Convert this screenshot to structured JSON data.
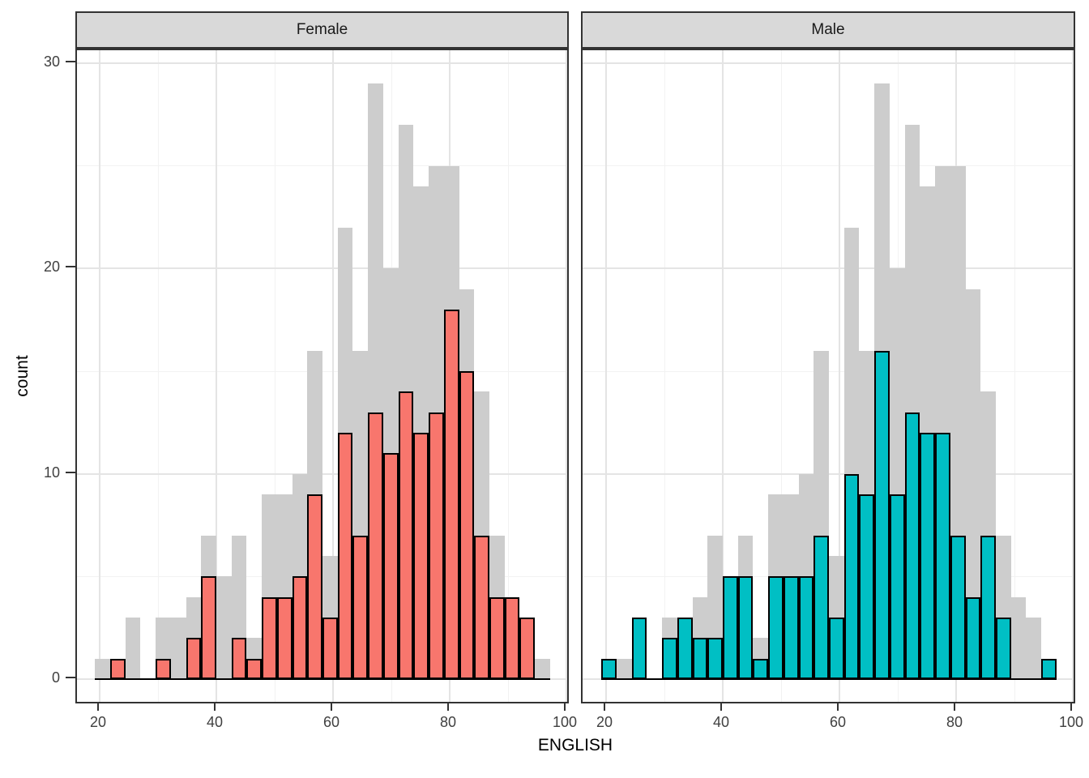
{
  "figure": {
    "x_axis_title": "ENGLISH",
    "y_axis_title": "count",
    "x_tick_labels": [
      "20",
      "40",
      "60",
      "80",
      "100"
    ],
    "y_tick_labels": [
      "0",
      "10",
      "20",
      "30"
    ]
  },
  "facets": [
    {
      "label": "Female",
      "color": "#F8766D"
    },
    {
      "label": "Male",
      "color": "#00BFC4"
    }
  ],
  "colors": {
    "background_bars": "#CDCDCD",
    "female_fill": "#F8766D",
    "male_fill": "#00BFC4",
    "bar_outline": "#000000",
    "strip_background": "#D9D9D9",
    "panel_border": "#333333",
    "grid_major": "#E4E4E4",
    "grid_minor": "#F2F2F2",
    "tick_text": "#404040"
  },
  "chart_data": {
    "type": "bar",
    "variant": "faceted histogram; gray background bars show the total (Female+Male) distribution repeated in each facet, colored bars show the facet subset",
    "title": "",
    "xlabel": "ENGLISH",
    "ylabel": "count",
    "facet_labels": [
      "Female",
      "Male"
    ],
    "bin_start": 19.2,
    "bin_width": 2.6,
    "n_bins": 30,
    "x_ticks": [
      20,
      40,
      60,
      80,
      100
    ],
    "x_minor_ticks": [
      30,
      50,
      70,
      90
    ],
    "y_ticks": [
      0,
      10,
      20,
      30
    ],
    "y_minor_ticks": [
      5,
      15,
      25
    ],
    "xlim": [
      16.1,
      100.7
    ],
    "ylim": [
      -1.26,
      30.63
    ],
    "grid": true,
    "legend_position": "none",
    "series": [
      {
        "name": "Total (gray background, identical in both facets)",
        "color": "#CDCDCD",
        "values": [
          1,
          1,
          3,
          0,
          3,
          3,
          4,
          7,
          5,
          7,
          2,
          9,
          9,
          10,
          16,
          6,
          22,
          16,
          29,
          20,
          27,
          24,
          25,
          25,
          19,
          14,
          7,
          4,
          3,
          1
        ]
      },
      {
        "name": "Female",
        "color": "#F8766D",
        "values": [
          0,
          1,
          0,
          0,
          1,
          0,
          2,
          5,
          0,
          2,
          1,
          4,
          4,
          5,
          9,
          3,
          12,
          7,
          13,
          11,
          14,
          12,
          13,
          18,
          15,
          7,
          4,
          4,
          3,
          0
        ]
      },
      {
        "name": "Male",
        "color": "#00BFC4",
        "values": [
          1,
          0,
          3,
          0,
          2,
          3,
          2,
          2,
          5,
          5,
          1,
          5,
          5,
          5,
          7,
          3,
          10,
          9,
          16,
          9,
          13,
          12,
          12,
          7,
          4,
          7,
          3,
          0,
          0,
          1
        ]
      }
    ]
  }
}
